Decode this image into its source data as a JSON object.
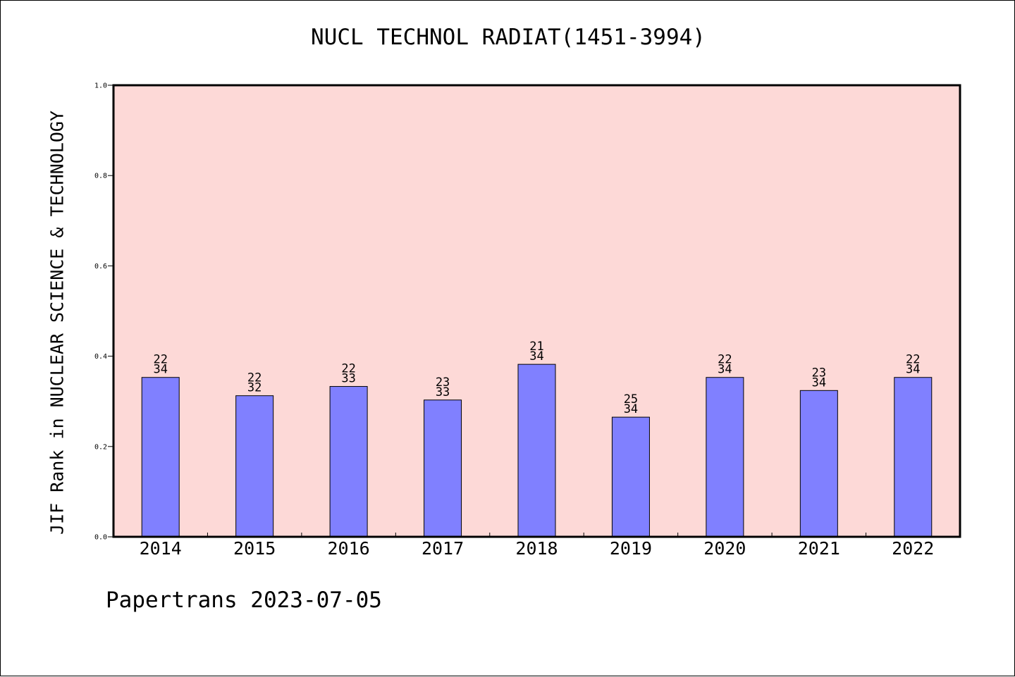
{
  "chart_data": {
    "type": "bar",
    "title": "NUCL TECHNOL RADIAT(1451-3994)",
    "xlabel": "",
    "ylabel": "JIF Rank in NUCLEAR SCIENCE & TECHNOLOGY",
    "categories": [
      "2014",
      "2015",
      "2016",
      "2017",
      "2018",
      "2019",
      "2020",
      "2021",
      "2022"
    ],
    "values": [
      0.353,
      0.3125,
      0.333,
      0.303,
      0.382,
      0.265,
      0.353,
      0.324,
      0.353
    ],
    "bar_labels": [
      {
        "rank": "22",
        "total": "34"
      },
      {
        "rank": "22",
        "total": "32"
      },
      {
        "rank": "22",
        "total": "33"
      },
      {
        "rank": "23",
        "total": "33"
      },
      {
        "rank": "21",
        "total": "34"
      },
      {
        "rank": "25",
        "total": "34"
      },
      {
        "rank": "22",
        "total": "34"
      },
      {
        "rank": "23",
        "total": "34"
      },
      {
        "rank": "22",
        "total": "34"
      }
    ],
    "ylim": [
      0,
      1.0
    ],
    "yticks": [
      "0.0",
      "0.2",
      "0.4",
      "0.6",
      "0.8",
      "1.0"
    ],
    "grid": false,
    "legend": "none",
    "colors": {
      "plot_background": "#fdd9d7",
      "bar_fill": "#8080ff",
      "bar_stroke": "#000000"
    }
  },
  "footer": "Papertrans 2023-07-05"
}
